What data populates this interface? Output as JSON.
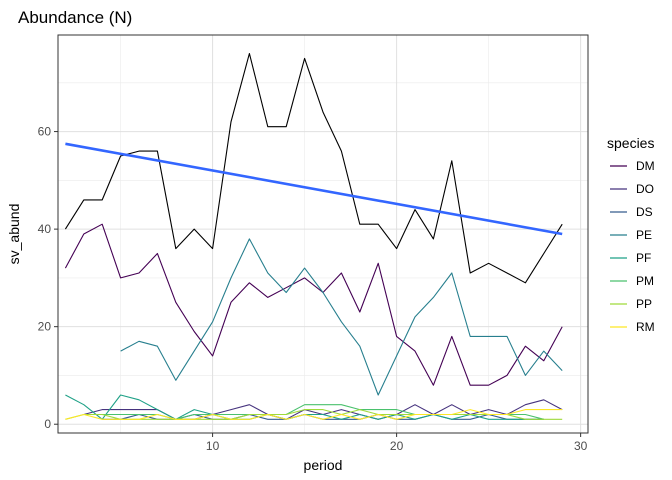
{
  "chart_data": {
    "type": "line",
    "title": "Abundance (N)",
    "xlabel": "period",
    "ylabel": "sv_abund",
    "xlim": [
      1.6,
      30.4
    ],
    "ylim": [
      -1.8,
      79.8
    ],
    "xticks": [
      10,
      20,
      30
    ],
    "yticks": [
      0,
      20,
      40,
      60
    ],
    "grid": true,
    "legend": {
      "title": "species",
      "position": "right"
    },
    "series": [
      {
        "name": "DM",
        "color": "#440154",
        "x": [
          2,
          3,
          4,
          5,
          6,
          7,
          8,
          9,
          10,
          11,
          12,
          13,
          14,
          15,
          16,
          17,
          18,
          19,
          20,
          21,
          22,
          23,
          24,
          25,
          26,
          27,
          28,
          29
        ],
        "y": [
          32,
          39,
          41,
          30,
          31,
          35,
          25,
          19,
          14,
          25,
          29,
          26,
          28,
          30,
          27,
          31,
          23,
          33,
          18,
          15,
          8,
          18,
          8,
          8,
          10,
          16,
          13,
          20
        ]
      },
      {
        "name": "DO",
        "color": "#46337E",
        "x": [
          3,
          4,
          5,
          6,
          7,
          8,
          9,
          10,
          11,
          12,
          13,
          14,
          15,
          16,
          17,
          18,
          19,
          20,
          21,
          22,
          23,
          24,
          25,
          26,
          27,
          28,
          29
        ],
        "y": [
          2,
          3,
          3,
          3,
          3,
          1,
          1,
          2,
          3,
          4,
          2,
          1,
          3,
          2,
          3,
          2,
          1,
          2,
          4,
          2,
          4,
          2,
          3,
          2,
          4,
          5,
          3
        ]
      },
      {
        "name": "DS",
        "color": "#365C8D",
        "x": [
          4,
          5,
          6,
          7,
          8,
          9,
          10,
          11,
          12,
          13,
          14,
          15,
          16,
          17,
          18,
          19,
          20,
          21,
          22,
          23,
          24,
          25,
          26,
          27,
          28
        ],
        "y": [
          1,
          1,
          2,
          1,
          1,
          2,
          1,
          1,
          2,
          1,
          1,
          2,
          1,
          1,
          1,
          2,
          1,
          1,
          2,
          1,
          1,
          2,
          1,
          1,
          1
        ]
      },
      {
        "name": "PE",
        "color": "#277F8E",
        "x": [
          5,
          6,
          7,
          8,
          9,
          10,
          11,
          12,
          13,
          14,
          15,
          16,
          17,
          18,
          19,
          20,
          21,
          22,
          23,
          24,
          25,
          26,
          27,
          28,
          29
        ],
        "y": [
          15,
          17,
          16,
          9,
          15,
          21,
          30,
          38,
          31,
          27,
          32,
          27,
          21,
          16,
          6,
          14,
          22,
          26,
          31,
          18,
          18,
          18,
          10,
          15,
          11
        ]
      },
      {
        "name": "PF",
        "color": "#1FA187",
        "x": [
          2,
          3,
          4,
          5,
          6,
          7,
          8,
          9,
          10,
          11,
          12,
          13,
          14,
          15,
          16,
          17,
          18,
          19,
          20,
          21,
          22,
          23,
          24,
          25,
          26,
          27,
          28
        ],
        "y": [
          6,
          4,
          1,
          6,
          5,
          3,
          1,
          3,
          2,
          1,
          1,
          2,
          1,
          2,
          2,
          1,
          2,
          1,
          2,
          1,
          2,
          1,
          2,
          1,
          1,
          1,
          1
        ]
      },
      {
        "name": "PM",
        "color": "#4AC16D",
        "x": [
          3,
          4,
          5,
          6,
          7,
          8,
          9,
          10,
          11,
          12,
          13,
          14,
          15,
          16,
          17,
          18,
          19,
          20,
          21,
          22,
          23,
          24,
          25,
          26,
          27,
          28
        ],
        "y": [
          2,
          2,
          2,
          2,
          2,
          1,
          2,
          2,
          2,
          2,
          2,
          2,
          4,
          4,
          4,
          3,
          3,
          3,
          2,
          2,
          2,
          2,
          2,
          2,
          2,
          1
        ]
      },
      {
        "name": "PP",
        "color": "#9FDA3A",
        "x": [
          2,
          3,
          4,
          5,
          6,
          7,
          8,
          9,
          10,
          11,
          12,
          13,
          14,
          15,
          16,
          17,
          18,
          19,
          20,
          21,
          22,
          23,
          24,
          25,
          26,
          27,
          28,
          29
        ],
        "y": [
          1,
          2,
          2,
          1,
          1,
          1,
          1,
          1,
          1,
          1,
          2,
          2,
          2,
          3,
          3,
          2,
          3,
          2,
          2,
          2,
          2,
          2,
          2,
          2,
          2,
          1,
          1,
          1
        ]
      },
      {
        "name": "RM",
        "color": "#FDE725",
        "x": [
          2,
          3,
          4,
          5,
          6,
          7,
          8,
          9,
          10,
          11,
          12,
          13,
          14,
          15,
          16,
          17,
          18,
          19,
          20,
          21,
          22,
          23,
          24,
          25,
          26,
          27,
          28,
          29
        ],
        "y": [
          1,
          2,
          1,
          1,
          1,
          2,
          1,
          1,
          2,
          1,
          1,
          2,
          1,
          2,
          1,
          2,
          1,
          2,
          1,
          2,
          2,
          2,
          3,
          2,
          2,
          3,
          3,
          3
        ]
      },
      {
        "color": "#000000",
        "x": [
          2,
          3,
          4,
          5,
          6,
          7,
          8,
          9,
          10,
          11,
          12,
          13,
          14,
          15,
          16,
          17,
          18,
          19,
          20,
          21,
          22,
          23,
          24,
          25,
          26,
          27,
          28,
          29
        ],
        "y": [
          40,
          46,
          46,
          55,
          56,
          56,
          36,
          40,
          36,
          62,
          76,
          61,
          61,
          75,
          64,
          56,
          41,
          41,
          36,
          44,
          38,
          54,
          31,
          33,
          31,
          29,
          35,
          41
        ]
      },
      {
        "color": "#3366FF",
        "x": [
          2,
          29
        ],
        "y": [
          57.5,
          39
        ]
      }
    ]
  }
}
